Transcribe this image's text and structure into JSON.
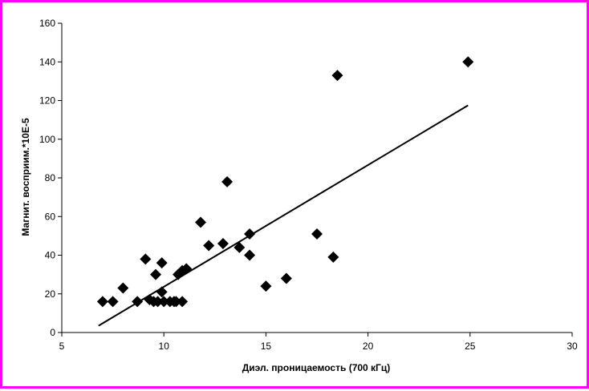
{
  "chart_data": {
    "type": "scatter",
    "title": "",
    "xlabel": "Диэл. проницаемость (700 кГц)",
    "ylabel": "Магнит. восприим.*10E-5",
    "xlim": [
      5,
      30
    ],
    "ylim": [
      0,
      160
    ],
    "xticks": [
      5,
      10,
      15,
      20,
      25,
      30
    ],
    "yticks": [
      0,
      20,
      40,
      60,
      80,
      100,
      120,
      140,
      160
    ],
    "xtick_labels": [
      "5",
      "10",
      "15",
      "20",
      "25",
      "30"
    ],
    "ytick_labels": [
      "0",
      "20",
      "40",
      "60",
      "80",
      "100",
      "120",
      "140",
      "160"
    ],
    "grid": false,
    "legend": "none",
    "marker": "diamond",
    "marker_color": "#000000",
    "line_color": "#000000",
    "frame_color": "#ff00ff",
    "points": [
      {
        "x": 7.0,
        "y": 16
      },
      {
        "x": 7.5,
        "y": 16
      },
      {
        "x": 8.0,
        "y": 23
      },
      {
        "x": 8.7,
        "y": 16
      },
      {
        "x": 9.1,
        "y": 38
      },
      {
        "x": 9.3,
        "y": 17
      },
      {
        "x": 9.5,
        "y": 16
      },
      {
        "x": 9.6,
        "y": 30
      },
      {
        "x": 9.7,
        "y": 16
      },
      {
        "x": 9.9,
        "y": 36
      },
      {
        "x": 9.9,
        "y": 21
      },
      {
        "x": 10.0,
        "y": 16
      },
      {
        "x": 10.3,
        "y": 16
      },
      {
        "x": 10.5,
        "y": 16
      },
      {
        "x": 10.6,
        "y": 16
      },
      {
        "x": 10.7,
        "y": 30
      },
      {
        "x": 10.9,
        "y": 16
      },
      {
        "x": 10.9,
        "y": 32
      },
      {
        "x": 11.1,
        "y": 33
      },
      {
        "x": 11.8,
        "y": 57
      },
      {
        "x": 12.2,
        "y": 45
      },
      {
        "x": 12.9,
        "y": 46
      },
      {
        "x": 13.1,
        "y": 78
      },
      {
        "x": 13.7,
        "y": 44
      },
      {
        "x": 14.2,
        "y": 51
      },
      {
        "x": 14.2,
        "y": 40
      },
      {
        "x": 15.0,
        "y": 24
      },
      {
        "x": 16.0,
        "y": 28
      },
      {
        "x": 17.5,
        "y": 51
      },
      {
        "x": 18.3,
        "y": 39
      },
      {
        "x": 18.5,
        "y": 133
      },
      {
        "x": 24.9,
        "y": 140
      }
    ],
    "trendline": {
      "type": "linear",
      "x": [
        6.8,
        24.9
      ],
      "y": [
        3.5,
        117.5
      ]
    }
  }
}
